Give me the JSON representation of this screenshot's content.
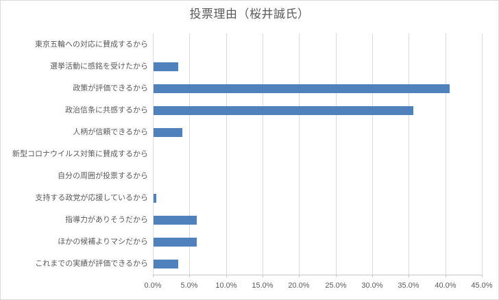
{
  "chart_data": {
    "type": "bar",
    "orientation": "horizontal",
    "title": "投票理由（桜井誠氏）",
    "categories": [
      "東京五輪への対応に賛成するから",
      "選挙活動に感銘を受けたから",
      "政策が評価できるから",
      "政治信条に共感するから",
      "人柄が信頼できるから",
      "新型コロナウイルス対策に賛成するから",
      "自分の周囲が投票するから",
      "支持する政党が応援しているから",
      "指導力がありそうだから",
      "ほかの候補よりマシだから",
      "これまでの実績が評価できるから"
    ],
    "values": [
      0.0,
      3.4,
      40.5,
      35.5,
      3.9,
      0.0,
      0.0,
      0.4,
      5.9,
      5.9,
      3.4
    ],
    "value_unit": "%",
    "xlabel": "",
    "ylabel": "",
    "xlim": [
      0,
      45
    ],
    "x_ticks": [
      "0.0%",
      "5.0%",
      "10.0%",
      "15.0%",
      "20.0%",
      "25.0%",
      "30.0%",
      "35.0%",
      "40.0%",
      "45.0%"
    ],
    "x_tick_values": [
      0,
      5,
      10,
      15,
      20,
      25,
      30,
      35,
      40,
      45
    ],
    "grid": true,
    "legend": "none",
    "colors": {
      "bar": "#4F81BD",
      "gridline": "#D9D9D9",
      "axis_line": "#C6C6C6",
      "text": "#595959",
      "background": "#FFFFFF",
      "border": "#D9D9D9"
    }
  }
}
